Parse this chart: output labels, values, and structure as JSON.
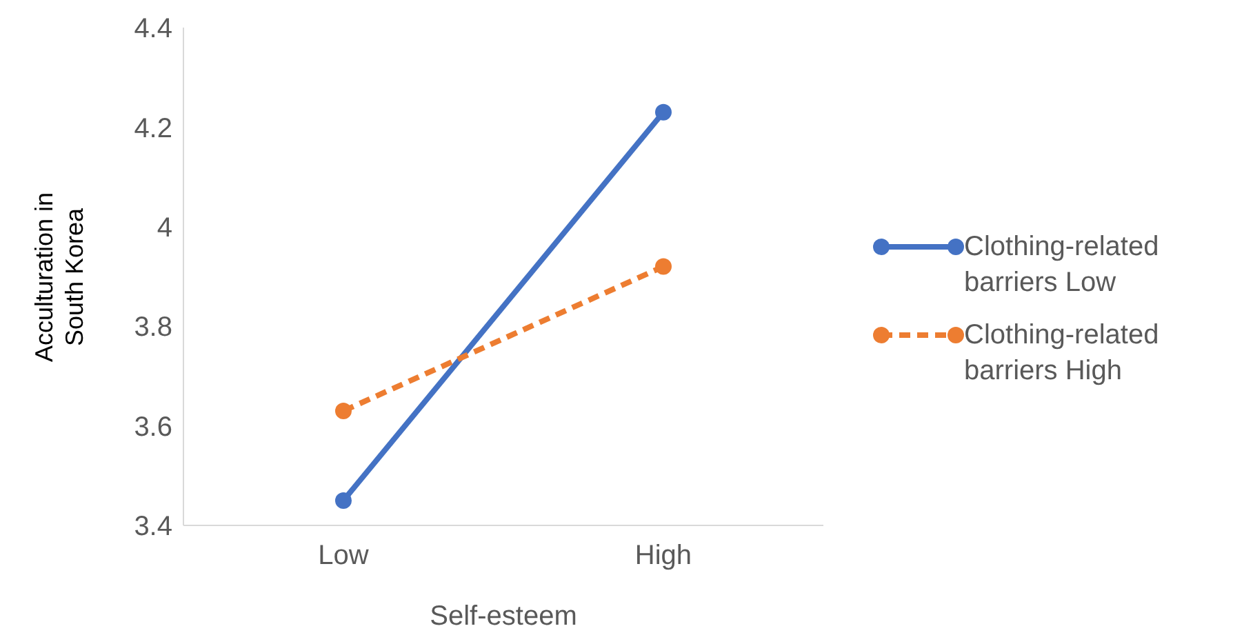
{
  "chart_data": {
    "type": "line",
    "xlabel": "Self-esteem",
    "ylabel": "Acculturation in South Korea",
    "categories": [
      "Low",
      "High"
    ],
    "series": [
      {
        "name": "Clothing-related barriers Low",
        "color": "#4472c4",
        "values": [
          3.45,
          4.23
        ],
        "line_style": "solid"
      },
      {
        "name": "Clothing-related barriers High",
        "color": "#ed7d31",
        "values": [
          3.63,
          3.92
        ],
        "line_style": "dashed"
      }
    ],
    "ylim": [
      3.4,
      4.4
    ],
    "yticks": [
      3.4,
      3.6,
      3.8,
      {
        "value": 4,
        "label": "4"
      },
      4.2,
      4.4
    ],
    "grid": false,
    "legend": "right",
    "marker": "circle"
  }
}
